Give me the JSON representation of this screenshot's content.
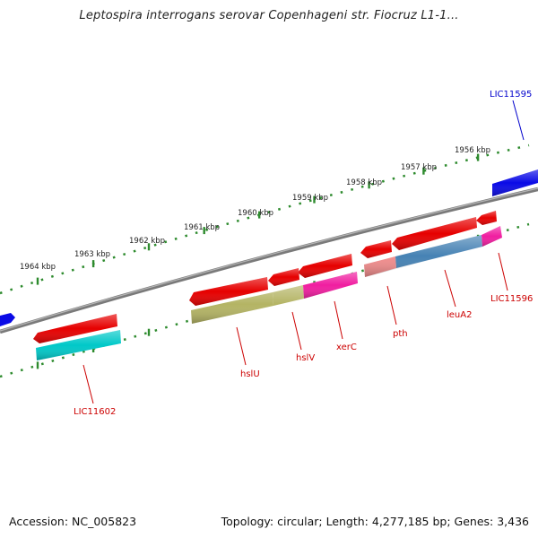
{
  "title": "Leptospira interrogans serovar Copenhageni str. Fiocruz L1-1...",
  "footer": {
    "accession": "Accession: NC_005823",
    "summary": "Topology: circular; Length: 4,277,185 bp; Genes: 3,436"
  },
  "colors": {
    "backbone": "#7f7f7f",
    "tick_dots": "#2e8b2e",
    "forward_gene": "#0a0ae6",
    "reverse_gene": "#e60000",
    "label_red": "#cc0000",
    "label_blue": "#0000cc"
  },
  "ruler": {
    "unit": "kbp",
    "labels": [
      {
        "kbp": 1964,
        "text": "1964 kbp"
      },
      {
        "kbp": 1963,
        "text": "1963 kbp"
      },
      {
        "kbp": 1962,
        "text": "1962 kbp"
      },
      {
        "kbp": 1961,
        "text": "1961 kbp"
      },
      {
        "kbp": 1960,
        "text": "1960 kbp"
      },
      {
        "kbp": 1959,
        "text": "1959 kbp"
      },
      {
        "kbp": 1958,
        "text": "1958 kbp"
      },
      {
        "kbp": 1957,
        "text": "1957 kbp"
      },
      {
        "kbp": 1956,
        "text": "1956 kbp"
      }
    ]
  },
  "genes": [
    {
      "name": "LIC11602",
      "strand": "reverse",
      "cog_color": "#00c8c8",
      "label_color": "#cc0000"
    },
    {
      "name": "hslU",
      "strand": "reverse",
      "cog_color": "#b4b464",
      "label_color": "#cc0000"
    },
    {
      "name": "hslV",
      "strand": "reverse",
      "cog_color": "#b4b464",
      "label_color": "#cc0000"
    },
    {
      "name": "xerC",
      "strand": "reverse",
      "cog_color": "#f01ea0",
      "label_color": "#cc0000"
    },
    {
      "name": "pth",
      "strand": "reverse",
      "cog_color": "#f08c8c",
      "label_color": "#cc0000"
    },
    {
      "name": "leuA2",
      "strand": "reverse",
      "cog_color": "#4682b4",
      "label_color": "#cc0000"
    },
    {
      "name": "LIC11596",
      "strand": "reverse",
      "cog_color": "#f01ea0",
      "label_color": "#cc0000"
    },
    {
      "name": "LIC11595",
      "strand": "forward",
      "cog_color": "",
      "label_color": "#0000cc"
    }
  ]
}
